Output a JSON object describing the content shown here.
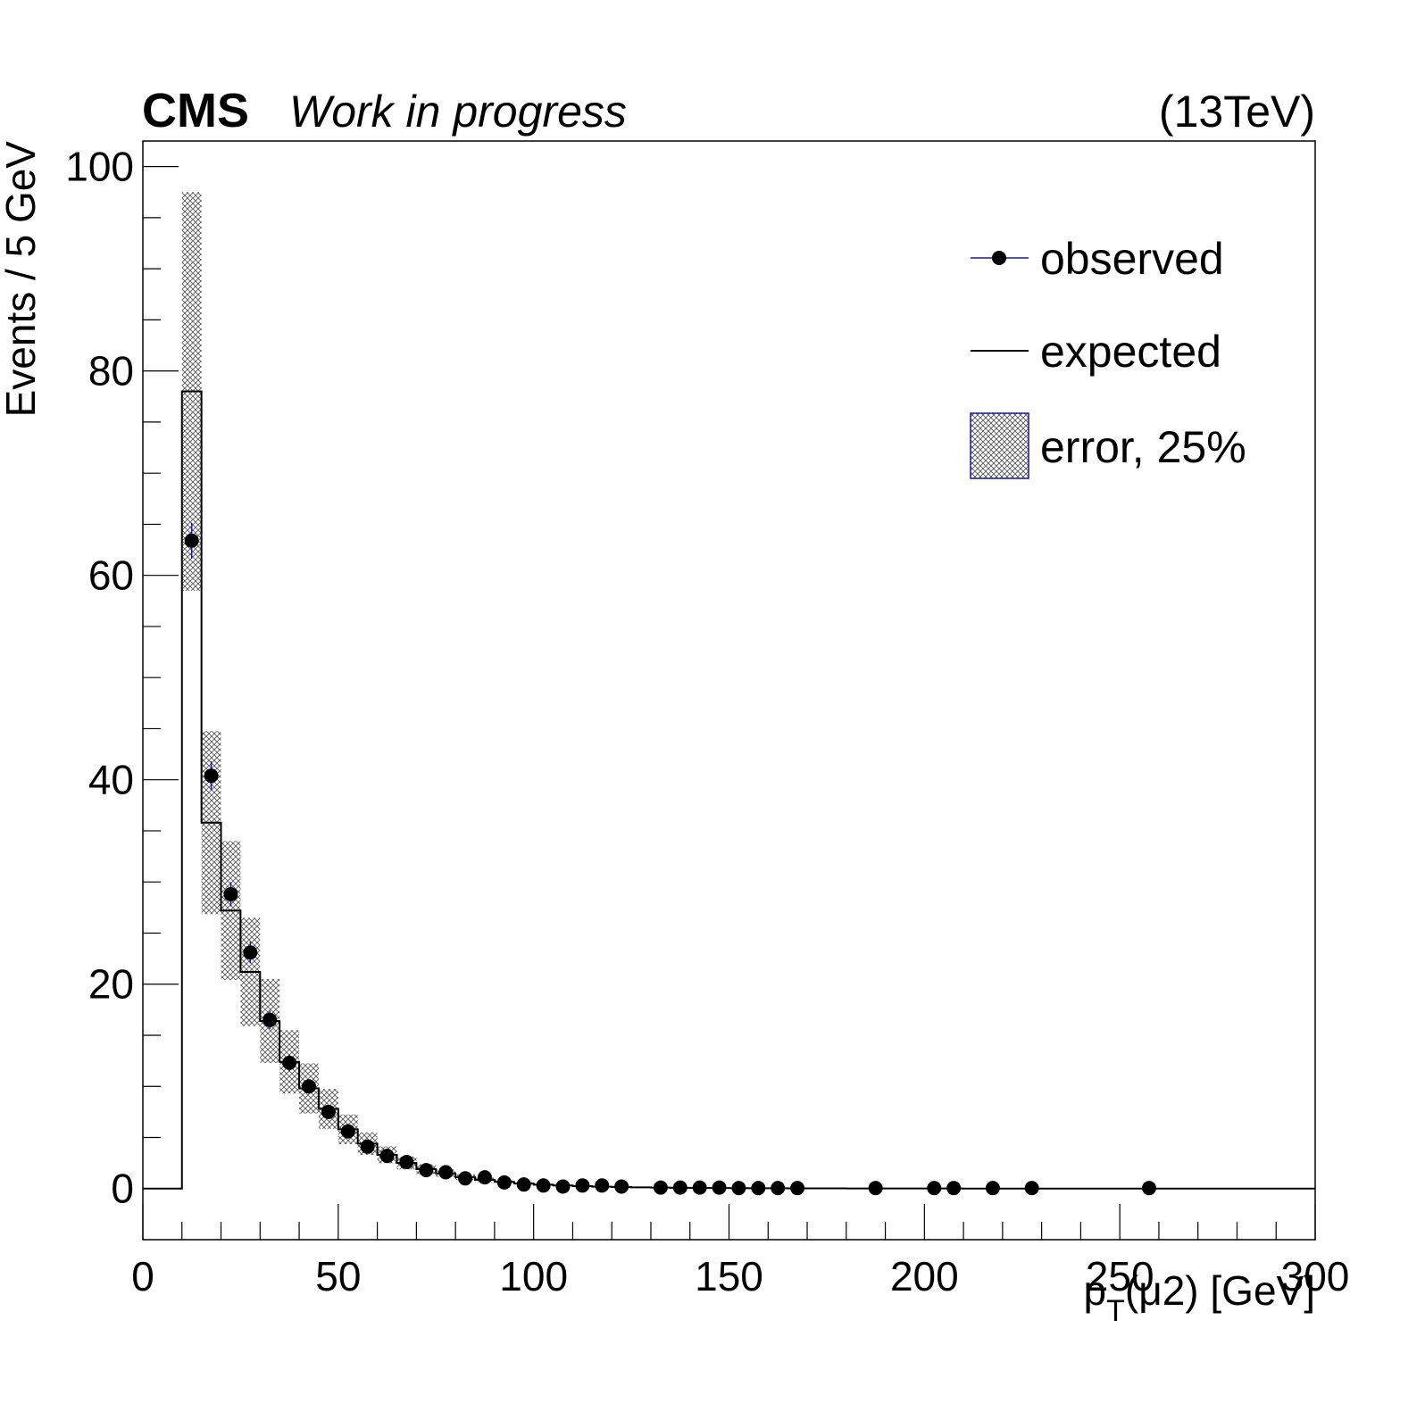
{
  "chart_data": {
    "type": "histogram",
    "header": {
      "experiment": "CMS",
      "status": "Work in progress",
      "energy": "(13TeV)"
    },
    "xlabel": {
      "prefix": "p",
      "subscript": "T",
      "suffix": "(μ2) [GeV]"
    },
    "ylabel": "Events / 5 GeV",
    "xlim": [
      0,
      300
    ],
    "ylim": [
      -5,
      102.5
    ],
    "xticks": [
      0,
      50,
      100,
      150,
      200,
      250,
      300
    ],
    "yticks": [
      0,
      20,
      40,
      60,
      80,
      100
    ],
    "grid": false,
    "legend_position": "top-right",
    "legend": {
      "observed": "observed",
      "expected": "expected",
      "error": "error, 25%"
    },
    "bin_width": 5,
    "expected": {
      "name": "expected",
      "bin_low_edges": [
        0,
        5,
        10,
        15,
        20,
        25,
        30,
        35,
        40,
        45,
        50,
        55,
        60,
        65,
        70,
        75,
        80,
        85,
        90,
        95,
        100,
        105,
        110,
        115,
        120,
        125,
        130,
        135,
        140,
        145,
        150,
        155,
        160,
        165,
        170,
        175,
        180,
        185,
        190,
        195,
        200,
        205,
        210,
        215,
        220,
        225,
        230,
        235,
        240,
        245,
        250,
        255,
        260,
        265,
        270,
        275,
        280,
        285,
        290,
        295
      ],
      "values": [
        0,
        0,
        78.0,
        35.8,
        27.2,
        21.2,
        16.4,
        12.4,
        9.8,
        7.8,
        5.8,
        4.4,
        3.3,
        2.5,
        1.9,
        1.5,
        1.1,
        0.85,
        0.65,
        0.5,
        0.38,
        0.3,
        0.24,
        0.19,
        0.15,
        0.12,
        0.1,
        0.08,
        0.06,
        0.05,
        0.04,
        0.03,
        0.03,
        0.02,
        0.02,
        0.02,
        0.01,
        0.01,
        0.01,
        0.01,
        0.01,
        0.01,
        0.0,
        0.0,
        0.0,
        0.0,
        0.0,
        0.0,
        0.0,
        0.0,
        0.0,
        0.0,
        0.0,
        0.0,
        0.0,
        0.0,
        0.0,
        0.0,
        0.0,
        0.0
      ]
    },
    "error_band": {
      "name": "error, 25%",
      "relative_uncertainty": 0.25
    },
    "observed": {
      "name": "observed",
      "x": [
        12.5,
        17.5,
        22.5,
        27.5,
        32.5,
        37.5,
        42.5,
        47.5,
        52.5,
        57.5,
        62.5,
        67.5,
        72.5,
        77.5,
        82.5,
        87.5,
        92.5,
        97.5,
        102.5,
        107.5,
        112.5,
        117.5,
        122.5,
        132.5,
        137.5,
        142.5,
        147.5,
        152.5,
        157.5,
        162.5,
        167.5,
        187.5,
        202.5,
        207.5,
        217.5,
        227.5,
        257.5
      ],
      "y": [
        63.4,
        40.4,
        28.8,
        23.1,
        16.5,
        12.3,
        10.0,
        7.5,
        5.6,
        4.1,
        3.2,
        2.6,
        1.8,
        1.6,
        1.0,
        1.1,
        0.6,
        0.4,
        0.3,
        0.2,
        0.3,
        0.3,
        0.2,
        0.1,
        0.1,
        0.1,
        0.1,
        0.05,
        0.05,
        0.05,
        0.05,
        0.05,
        0.05,
        0.05,
        0.05,
        0.05,
        0.05
      ]
    }
  }
}
